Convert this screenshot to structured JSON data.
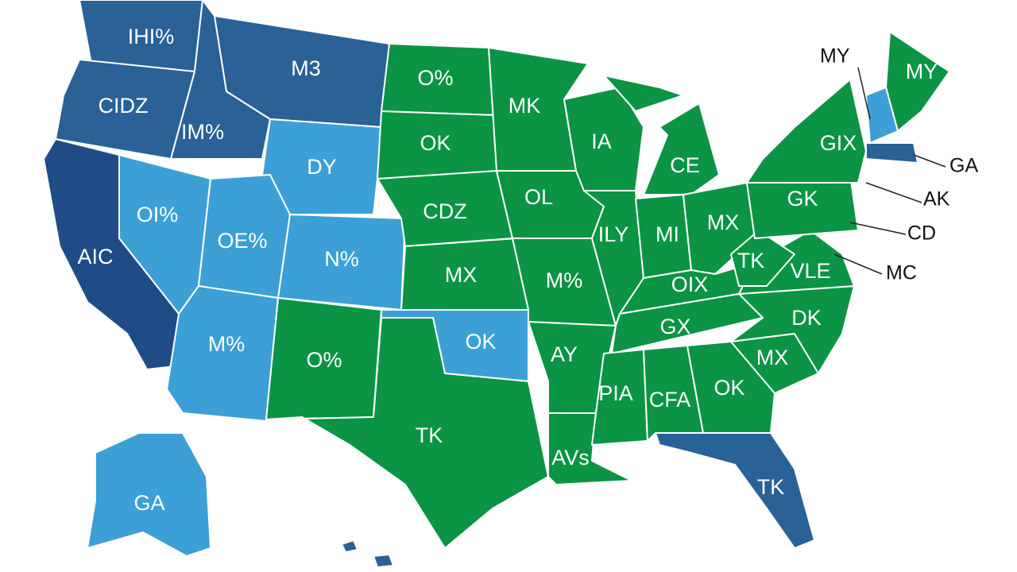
{
  "regions": [
    "IHI%",
    "M3",
    "CIDZ",
    "IM%",
    "DY",
    "OI%",
    "OE%",
    "N%",
    "AIC",
    "M%",
    "O%",
    "O%",
    "OK",
    "CDZ",
    "MX",
    "OK",
    "TK",
    "MK",
    "OL",
    "M%",
    "AY",
    "AVs",
    "IA",
    "ILY",
    "CE",
    "MI",
    "MX",
    "OIX",
    "GX",
    "PIA",
    "CFA",
    "OK",
    "MX",
    "DK",
    "VLE",
    "TK",
    "GK",
    "GIX",
    "MY",
    "TK",
    "GA"
  ],
  "callouts": [
    "MY",
    "GA",
    "AK",
    "CD",
    "MC"
  ]
}
